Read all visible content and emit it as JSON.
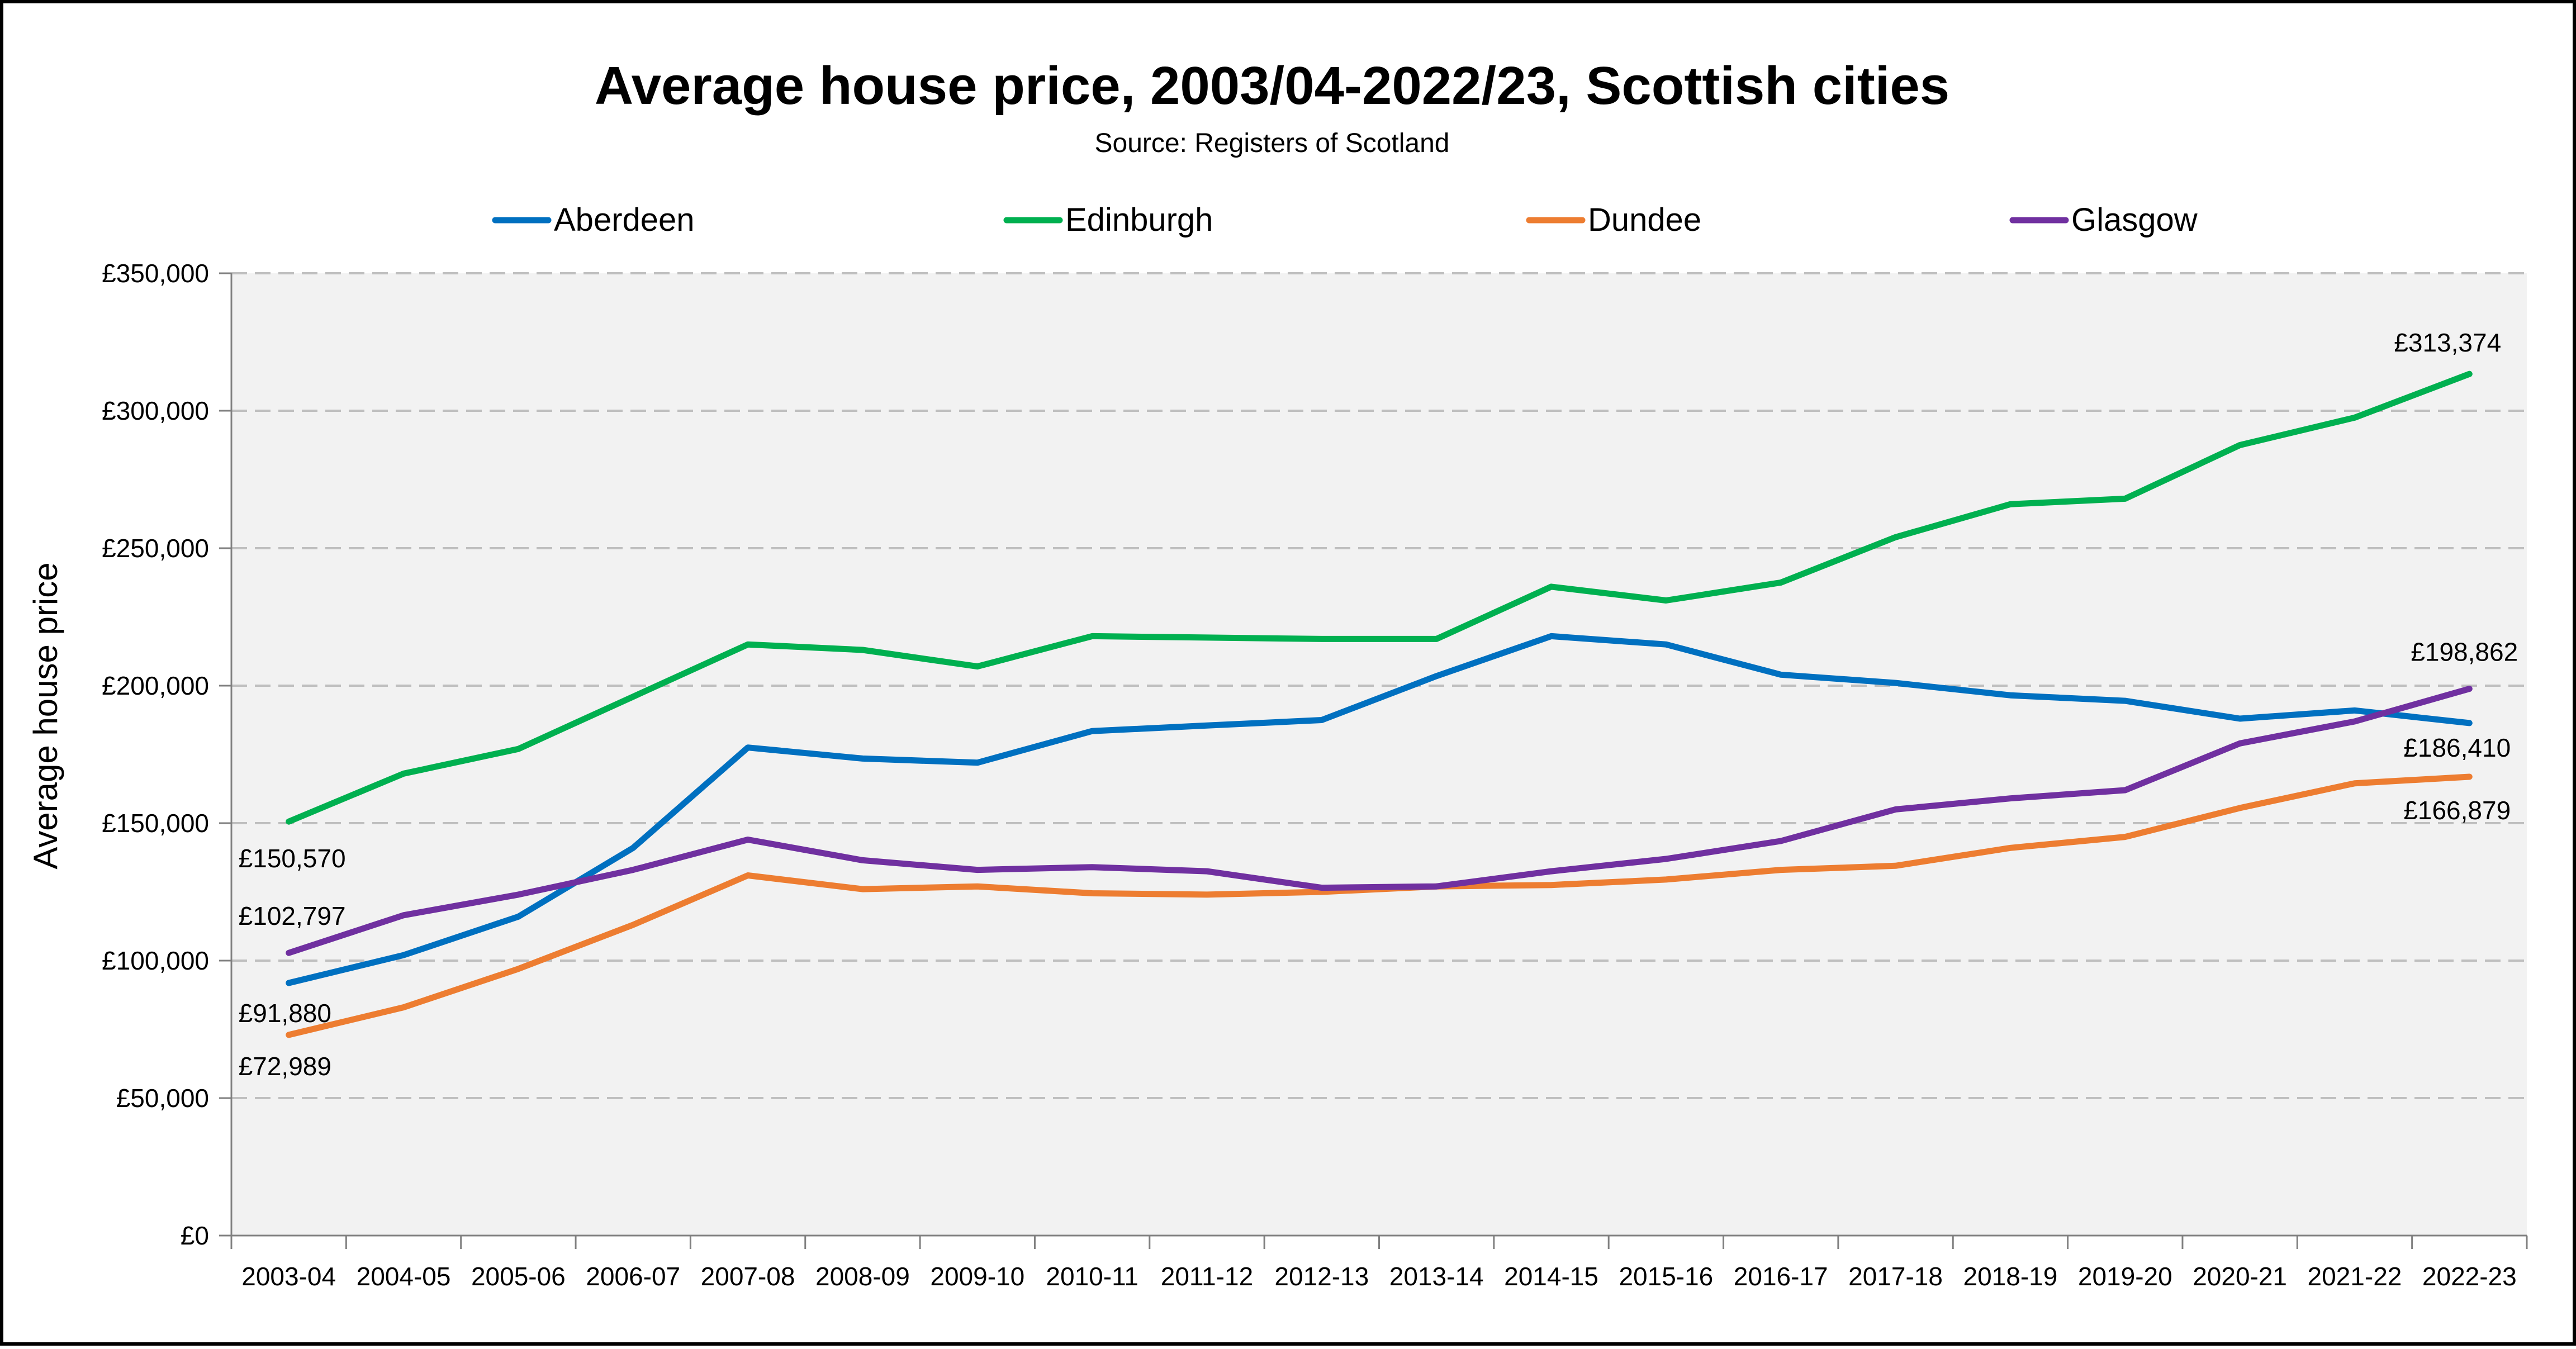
{
  "chart_data": {
    "type": "line",
    "title": "Average house price, 2003/04-2022/23, Scottish cities",
    "subtitle": "Source: Registers of Scotland",
    "xlabel": "",
    "ylabel": "Average house price",
    "ylim": [
      0,
      350000
    ],
    "yticks": [
      0,
      50000,
      100000,
      150000,
      200000,
      250000,
      300000,
      350000
    ],
    "ytick_labels": [
      "£0",
      "£50,000",
      "£100,000",
      "£150,000",
      "£200,000",
      "£250,000",
      "£300,000",
      "£350,000"
    ],
    "grid": true,
    "legend_position": "top",
    "categories": [
      "2003-04",
      "2004-05",
      "2005-06",
      "2006-07",
      "2007-08",
      "2008-09",
      "2009-10",
      "2010-11",
      "2011-12",
      "2012-13",
      "2013-14",
      "2014-15",
      "2015-16",
      "2016-17",
      "2017-18",
      "2018-19",
      "2019-20",
      "2020-21",
      "2021-22",
      "2022-23"
    ],
    "series": [
      {
        "name": "Aberdeen",
        "color": "#0070C0",
        "values": [
          91880,
          102000,
          116000,
          141000,
          177500,
          173500,
          172000,
          183500,
          185500,
          187500,
          203500,
          218000,
          215000,
          204000,
          201000,
          196500,
          194500,
          188000,
          191000,
          186410
        ]
      },
      {
        "name": "Edinburgh",
        "color": "#00B050",
        "values": [
          150570,
          168000,
          177000,
          196000,
          215000,
          213000,
          207000,
          218000,
          217500,
          217000,
          217000,
          236000,
          231000,
          237500,
          254000,
          266000,
          268000,
          287500,
          297500,
          313374
        ]
      },
      {
        "name": "Dundee",
        "color": "#ED7D31",
        "values": [
          72989,
          83000,
          97000,
          113000,
          131000,
          126000,
          127000,
          124500,
          124000,
          125000,
          127000,
          127500,
          129500,
          133000,
          134500,
          141000,
          145000,
          155500,
          164500,
          166879
        ]
      },
      {
        "name": "Glasgow",
        "color": "#7030A0",
        "values": [
          102797,
          116500,
          124000,
          133000,
          144000,
          136500,
          133000,
          134000,
          132500,
          126500,
          127000,
          132500,
          137000,
          143500,
          155000,
          159000,
          162000,
          179000,
          187000,
          198862
        ]
      }
    ],
    "annotations": [
      {
        "series": "Edinburgh",
        "index": 0,
        "text": "£150,570"
      },
      {
        "series": "Glasgow",
        "index": 0,
        "text": "£102,797"
      },
      {
        "series": "Aberdeen",
        "index": 0,
        "text": "£91,880"
      },
      {
        "series": "Dundee",
        "index": 0,
        "text": "£72,989"
      },
      {
        "series": "Edinburgh",
        "index": 19,
        "text": "£313,374"
      },
      {
        "series": "Glasgow",
        "index": 19,
        "text": "£198,862"
      },
      {
        "series": "Aberdeen",
        "index": 19,
        "text": "£186,410"
      },
      {
        "series": "Dundee",
        "index": 19,
        "text": "£166,879"
      }
    ]
  }
}
